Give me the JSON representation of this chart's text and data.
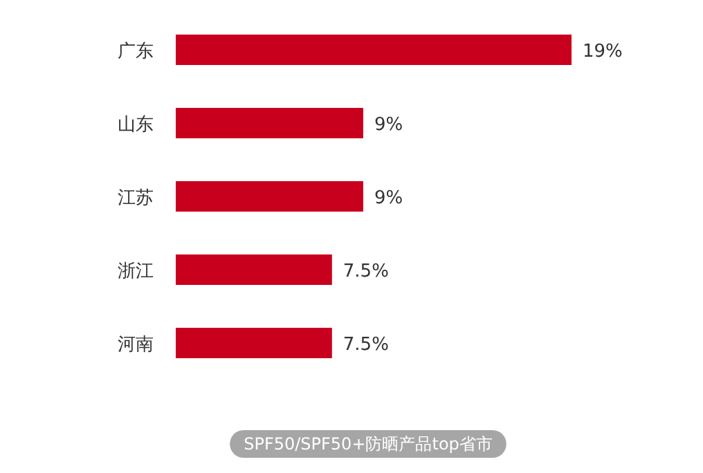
{
  "chart_data": {
    "type": "bar",
    "orientation": "horizontal",
    "title": "SPF50/SPF50+防晒产品top省市",
    "categories": [
      "广东",
      "山东",
      "江苏",
      "浙江",
      "河南"
    ],
    "values": [
      19,
      9,
      9,
      7.5,
      7.5
    ],
    "value_labels": [
      "19%",
      "9%",
      "9%",
      "7.5%",
      "7.5%"
    ],
    "color": "#c8001e"
  }
}
